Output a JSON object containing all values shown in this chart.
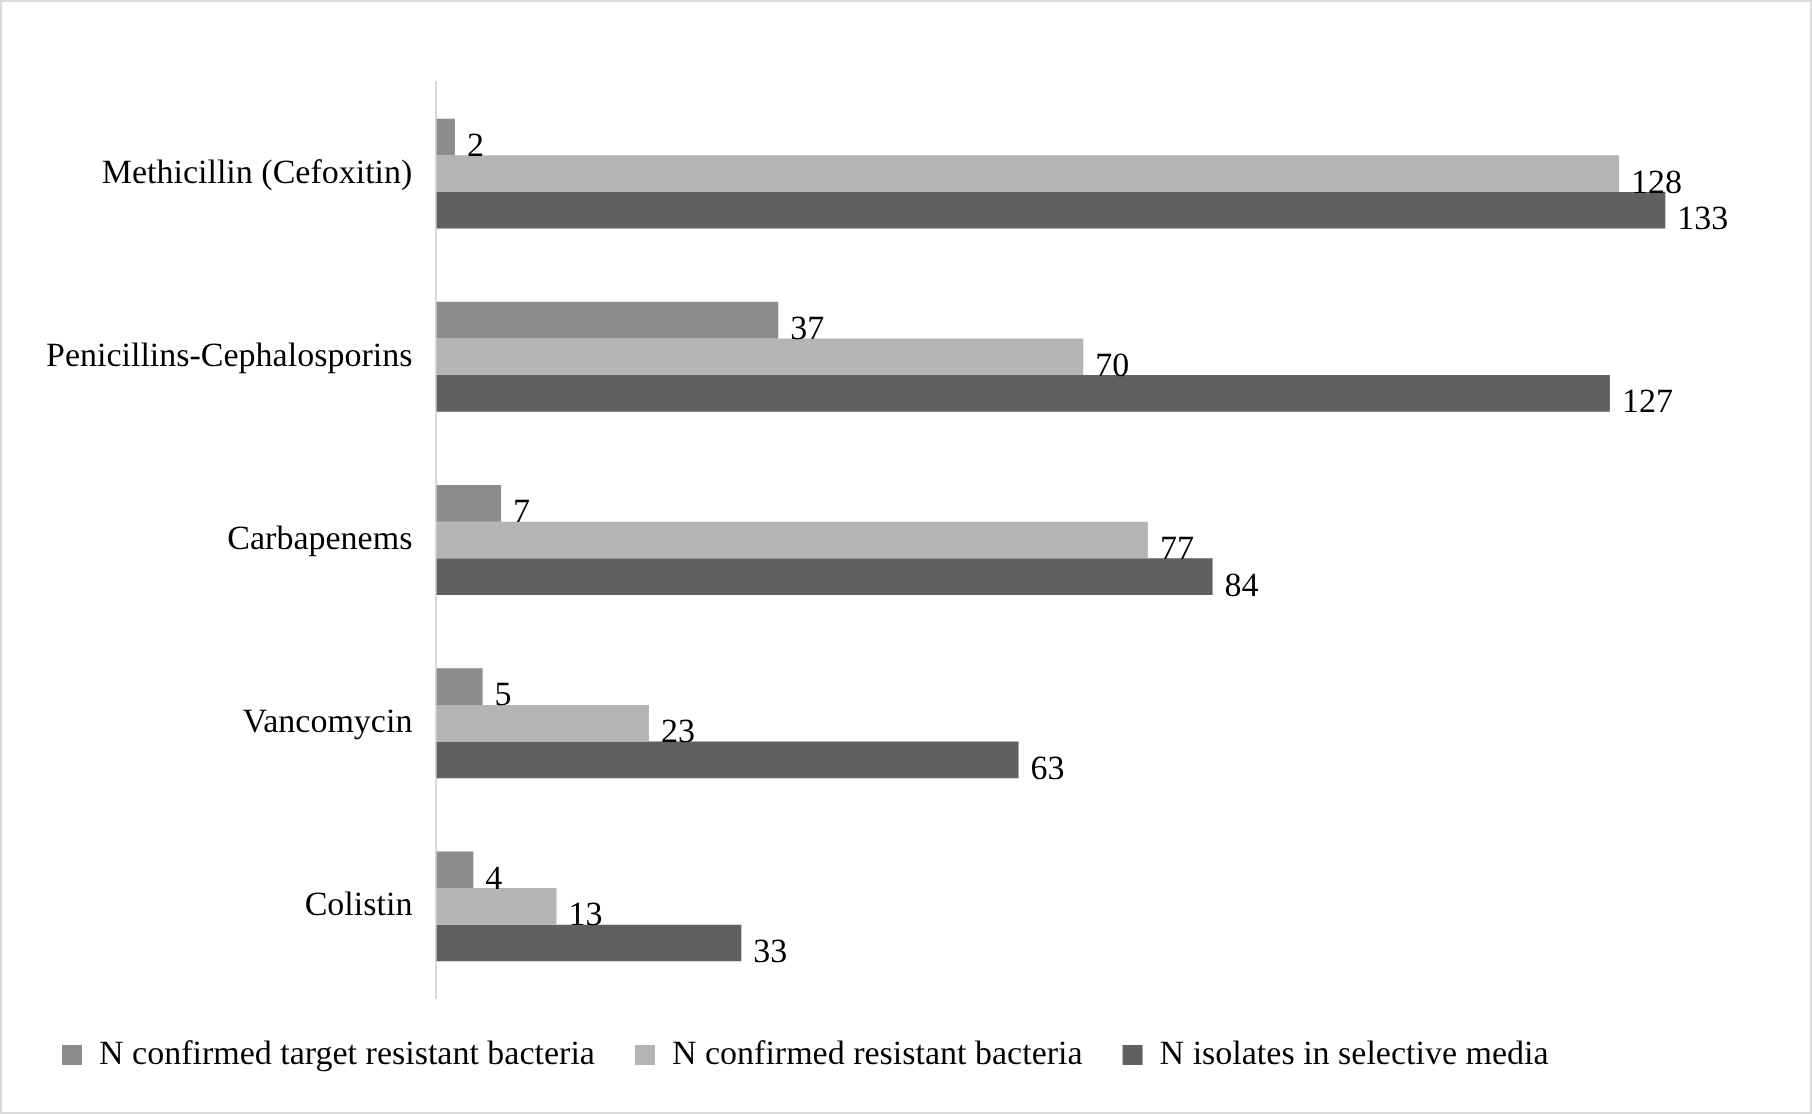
{
  "chart_data": {
    "type": "bar",
    "orientation": "horizontal",
    "categories": [
      "Methicillin (Cefoxitin)",
      "Penicillins-Cephalosporins",
      "Carbapenems",
      "Vancomycin",
      "Colistin"
    ],
    "series": [
      {
        "name": "N confirmed target resistant bacteria",
        "color": "#8c8c8c",
        "values": [
          2,
          37,
          7,
          5,
          4
        ]
      },
      {
        "name": "N confirmed resistant bacteria",
        "color": "#b4b4b4",
        "values": [
          128,
          70,
          77,
          23,
          13
        ]
      },
      {
        "name": "N isolates in selective media",
        "color": "#606060",
        "values": [
          133,
          127,
          84,
          63,
          33
        ]
      }
    ],
    "data_labels": true,
    "grid": false,
    "legend": "bottom",
    "tick_labels": "y"
  }
}
